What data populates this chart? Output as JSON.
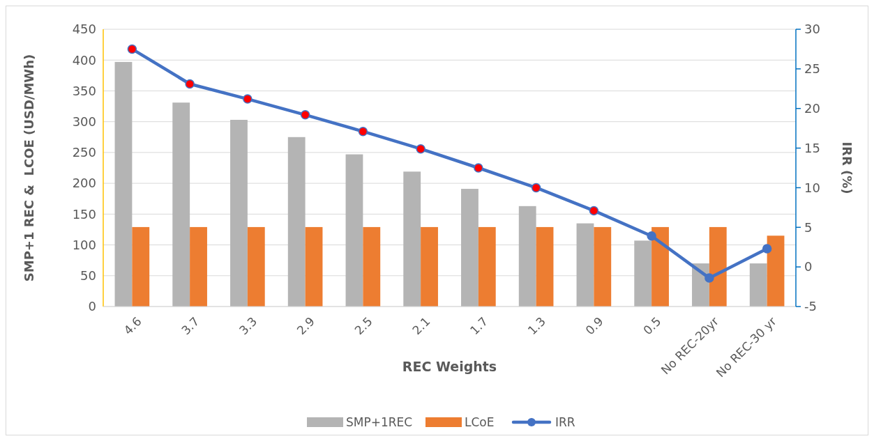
{
  "chart_data": {
    "type": "bar",
    "xlabel": "REC Weights",
    "ylabel": "SMP+1 REC &  LCOE (USD/MWh)",
    "y2label": "IRR (%)",
    "categories": [
      "4.6",
      "3.7",
      "3.3",
      "2.9",
      "2.5",
      "2.1",
      "1.7",
      "1.3",
      "0.9",
      "0.5",
      "No REC-20yr",
      "No REC-30 yr"
    ],
    "series": [
      {
        "name": "SMP+1REC",
        "color": "#b4b4b4",
        "values": [
          397,
          331,
          303,
          275,
          247,
          219,
          191,
          163,
          135,
          107,
          70,
          70
        ]
      },
      {
        "name": "LCoE",
        "color": "#ed7d31",
        "values": [
          129,
          129,
          129,
          129,
          129,
          129,
          129,
          129,
          129,
          129,
          129,
          115
        ]
      },
      {
        "name": "IRR",
        "type": "line",
        "axis": "y2",
        "color": "#4472c4",
        "marker": "circle",
        "colors": [
          "#ff0000",
          "#ff0000",
          "#ff0000",
          "#ff0000",
          "#ff0000",
          "#ff0000",
          "#ff0000",
          "#ff0000",
          "#ff0000",
          "#4472c4",
          "#4472c4",
          "#4472c4"
        ],
        "values": [
          27.5,
          23.1,
          21.2,
          19.2,
          17.1,
          14.9,
          12.5,
          10.0,
          7.1,
          3.9,
          -1.4,
          2.3
        ]
      }
    ],
    "ylim": [
      0,
      450
    ],
    "yticks": [
      0,
      50,
      100,
      150,
      200,
      250,
      300,
      350,
      400,
      450
    ],
    "y2lim": [
      -5,
      30
    ],
    "y2ticks": [
      -5,
      0,
      5,
      10,
      15,
      20,
      25,
      30
    ],
    "grid": "y",
    "legend": "bottom"
  }
}
